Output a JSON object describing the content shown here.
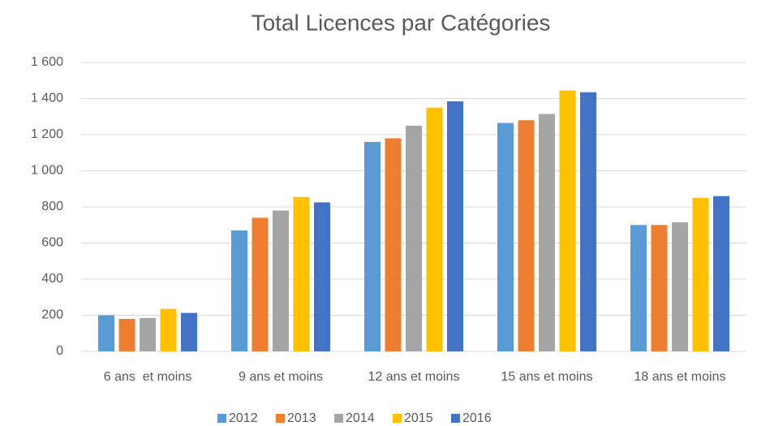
{
  "chart_data": {
    "type": "bar",
    "title": "Total Licences par Catégories",
    "categories": [
      "6 ans  et moins",
      "9 ans et moins",
      "12 ans et moins",
      "15 ans et moins",
      "18 ans et moins"
    ],
    "series": [
      {
        "name": "2012",
        "color": "#5b9bd5",
        "values": [
          200,
          670,
          1160,
          1265,
          700
        ]
      },
      {
        "name": "2013",
        "color": "#ed7d31",
        "values": [
          180,
          740,
          1180,
          1280,
          700
        ]
      },
      {
        "name": "2014",
        "color": "#a5a5a5",
        "values": [
          185,
          780,
          1250,
          1315,
          715
        ]
      },
      {
        "name": "2015",
        "color": "#ffc000",
        "values": [
          235,
          855,
          1350,
          1445,
          850
        ]
      },
      {
        "name": "2016",
        "color": "#4472c4",
        "values": [
          213,
          825,
          1385,
          1435,
          860
        ]
      }
    ],
    "ylim": [
      0,
      1600
    ],
    "yticks": [
      0,
      200,
      400,
      600,
      800,
      {
        "value": 1000,
        "label": "1 000"
      },
      {
        "value": 1200,
        "label": "1 200"
      },
      {
        "value": 1400,
        "label": "1 400"
      },
      {
        "value": 1600,
        "label": "1 600"
      }
    ],
    "grid": true,
    "legend": "bottom"
  }
}
